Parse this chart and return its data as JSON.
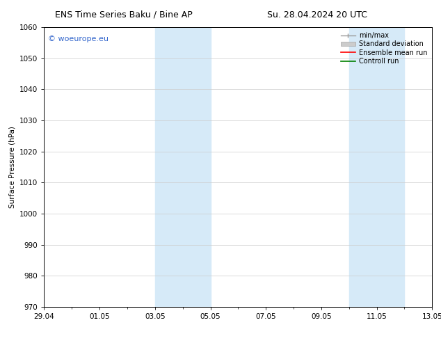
{
  "title_left": "ENS Time Series Baku / Bine AP",
  "title_right": "Su. 28.04.2024 20 UTC",
  "ylabel": "Surface Pressure (hPa)",
  "ylim": [
    970,
    1060
  ],
  "yticks": [
    970,
    980,
    990,
    1000,
    1010,
    1020,
    1030,
    1040,
    1050,
    1060
  ],
  "xtick_labels": [
    "29.04",
    "01.05",
    "03.05",
    "05.05",
    "07.05",
    "09.05",
    "11.05",
    "13.05"
  ],
  "xtick_positions": [
    0,
    2,
    4,
    6,
    8,
    10,
    12,
    14
  ],
  "xlim": [
    0,
    14
  ],
  "shaded_regions": [
    {
      "xstart": 4.0,
      "xend": 6.0
    },
    {
      "xstart": 11.0,
      "xend": 13.0
    }
  ],
  "shaded_color": "#d6eaf8",
  "watermark_text": "© woeurope.eu",
  "watermark_color": "#3366cc",
  "border_color": "#000000",
  "grid_color": "#cccccc",
  "bg_color": "#ffffff",
  "font_size_title": 9,
  "font_size_axis": 7.5,
  "font_size_legend": 7,
  "font_size_watermark": 8
}
